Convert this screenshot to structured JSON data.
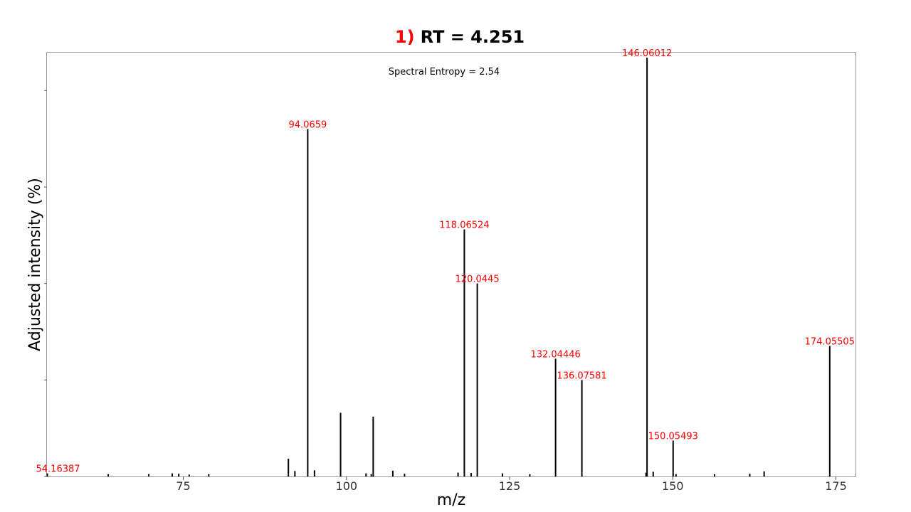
{
  "title": {
    "prefix": "1)",
    "main": "RT = 4.251"
  },
  "colors": {
    "accent": "#ff0000",
    "peak": "#000000",
    "axis": "#999999",
    "text": "#000000"
  },
  "chart_data": {
    "type": "bar",
    "annotation": "Spectral Entropy = 2.54",
    "xlabel": "m/z",
    "ylabel": "Adjusted intensity (%)",
    "xlim": [
      54,
      178
    ],
    "ylim": [
      0,
      110
    ],
    "xticks": [
      75,
      100,
      125,
      150,
      175
    ],
    "yticks": [
      0,
      25,
      50,
      75,
      100
    ],
    "grid": false,
    "peaks": [
      {
        "mz": 54.16387,
        "intensity": 0.8,
        "label": "54.16387"
      },
      {
        "mz": 63.5,
        "intensity": 0.6
      },
      {
        "mz": 69.7,
        "intensity": 0.6
      },
      {
        "mz": 73.3,
        "intensity": 0.8
      },
      {
        "mz": 74.3,
        "intensity": 0.7
      },
      {
        "mz": 75.9,
        "intensity": 0.5
      },
      {
        "mz": 78.9,
        "intensity": 0.6
      },
      {
        "mz": 91.1,
        "intensity": 4.6
      },
      {
        "mz": 92.1,
        "intensity": 1.4
      },
      {
        "mz": 94.0659,
        "intensity": 90,
        "label": "94.0659"
      },
      {
        "mz": 95.1,
        "intensity": 1.6
      },
      {
        "mz": 99.1,
        "intensity": 16.5
      },
      {
        "mz": 103.0,
        "intensity": 0.8
      },
      {
        "mz": 103.8,
        "intensity": 0.6
      },
      {
        "mz": 104.1,
        "intensity": 15.5
      },
      {
        "mz": 107.1,
        "intensity": 1.5
      },
      {
        "mz": 108.9,
        "intensity": 0.7
      },
      {
        "mz": 117.1,
        "intensity": 1.0
      },
      {
        "mz": 118.06524,
        "intensity": 64,
        "label": "118.06524"
      },
      {
        "mz": 119.1,
        "intensity": 0.9
      },
      {
        "mz": 120.0445,
        "intensity": 50,
        "label": "120.0445"
      },
      {
        "mz": 123.9,
        "intensity": 0.8
      },
      {
        "mz": 128.1,
        "intensity": 0.6
      },
      {
        "mz": 132.04446,
        "intensity": 30.5,
        "label": "132.04446"
      },
      {
        "mz": 136.07581,
        "intensity": 25,
        "label": "136.07581"
      },
      {
        "mz": 145.9,
        "intensity": 1.0
      },
      {
        "mz": 146.06012,
        "intensity": 108.5,
        "label": "146.06012"
      },
      {
        "mz": 147.0,
        "intensity": 1.2
      },
      {
        "mz": 150.05493,
        "intensity": 9.3,
        "label": "150.05493"
      },
      {
        "mz": 150.5,
        "intensity": 0.6
      },
      {
        "mz": 156.4,
        "intensity": 0.6
      },
      {
        "mz": 161.8,
        "intensity": 0.7
      },
      {
        "mz": 164.0,
        "intensity": 1.3
      },
      {
        "mz": 174.05505,
        "intensity": 33.8,
        "label": "174.05505"
      }
    ]
  }
}
